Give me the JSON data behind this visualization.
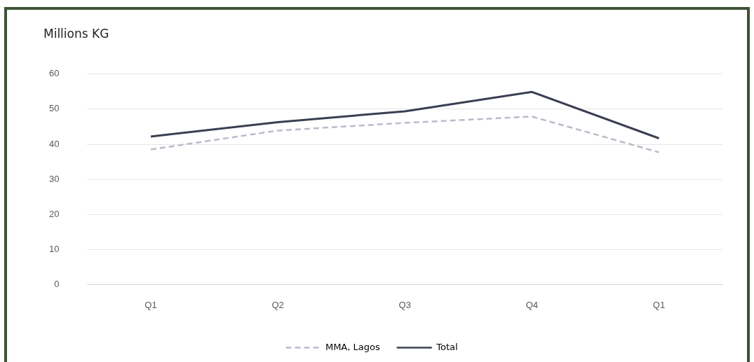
{
  "chart_data": {
    "type": "line",
    "ylabel": "Millions KG",
    "categories": [
      "Q1",
      "Q2",
      "Q3",
      "Q4",
      "Q1"
    ],
    "series": [
      {
        "name": "MMA, Lagos",
        "color": "#b8bcc8",
        "line_style": "dashed",
        "values": [
          38.5,
          43.9,
          46.1,
          47.9,
          37.7
        ]
      },
      {
        "name": "Total",
        "color": "#3b3f52",
        "line_style": "solid",
        "values": [
          42.2,
          46.3,
          49.4,
          54.9,
          41.7
        ]
      }
    ],
    "ylim": [
      0,
      60
    ],
    "yticks": [
      0,
      10,
      20,
      30,
      40,
      50,
      60
    ],
    "grid": "y",
    "legend": "bottom",
    "marker": "none"
  }
}
